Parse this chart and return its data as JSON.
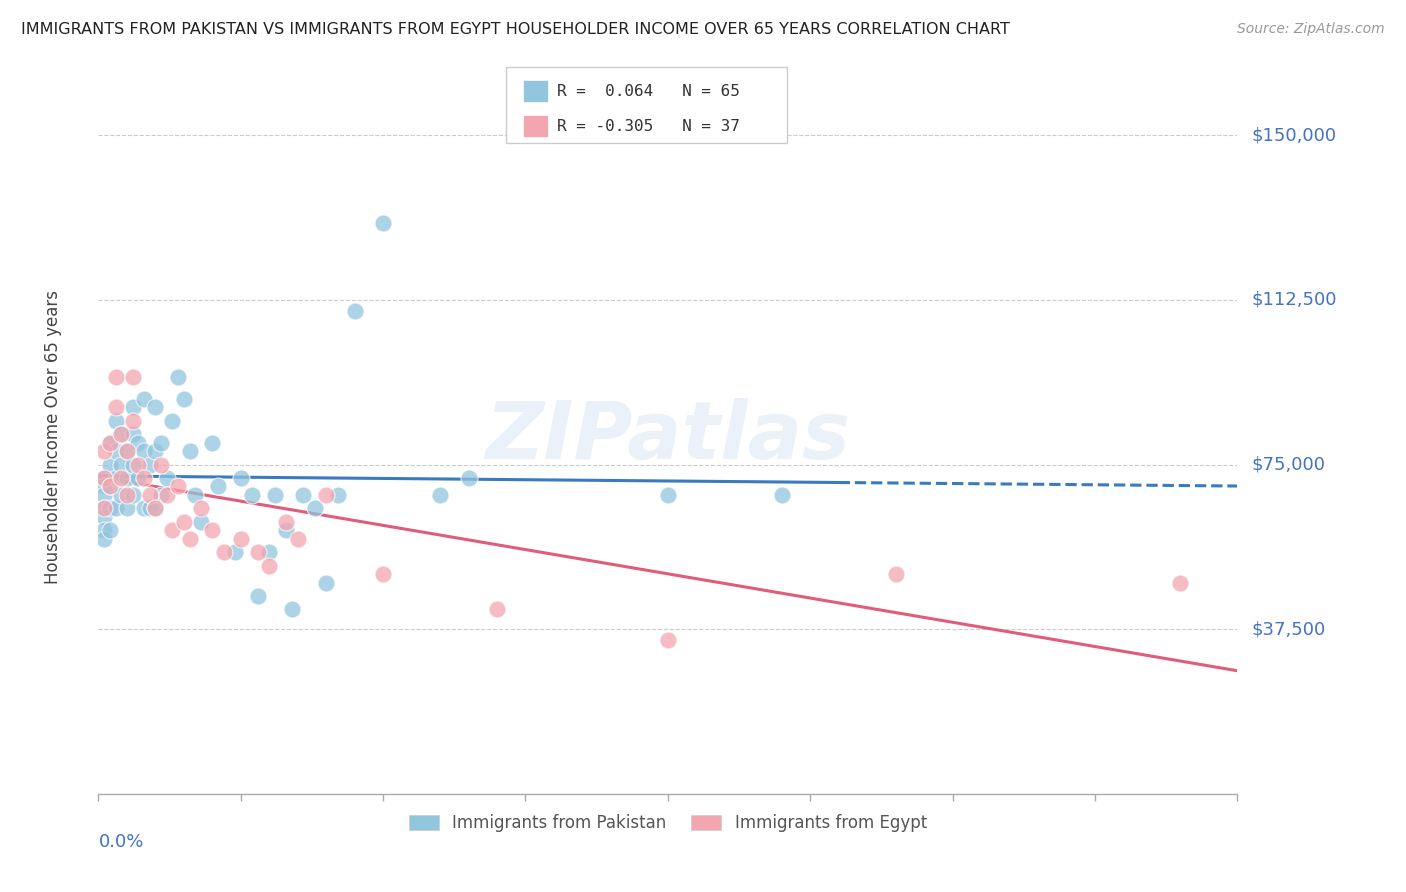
{
  "title": "IMMIGRANTS FROM PAKISTAN VS IMMIGRANTS FROM EGYPT HOUSEHOLDER INCOME OVER 65 YEARS CORRELATION CHART",
  "source": "Source: ZipAtlas.com",
  "ylabel": "Householder Income Over 65 years",
  "ytick_values": [
    37500,
    75000,
    112500,
    150000
  ],
  "ytick_labels": [
    "$37,500",
    "$75,000",
    "$112,500",
    "$150,000"
  ],
  "xlim": [
    0.0,
    0.2
  ],
  "ylim": [
    0,
    162500
  ],
  "pakistan_R": 0.064,
  "pakistan_N": 65,
  "egypt_R": -0.305,
  "egypt_N": 37,
  "pakistan_color": "#92c5de",
  "egypt_color": "#f4a6b0",
  "pakistan_line_color": "#3a7abf",
  "egypt_line_color": "#e05c7a",
  "watermark": "ZIPatlas",
  "background_color": "#ffffff",
  "grid_color": "#cccccc",
  "pakistan_x": [
    0.001,
    0.001,
    0.001,
    0.001,
    0.001,
    0.001,
    0.001,
    0.002,
    0.002,
    0.002,
    0.002,
    0.002,
    0.003,
    0.003,
    0.003,
    0.003,
    0.004,
    0.004,
    0.004,
    0.005,
    0.005,
    0.005,
    0.006,
    0.006,
    0.006,
    0.006,
    0.007,
    0.007,
    0.008,
    0.008,
    0.008,
    0.009,
    0.009,
    0.01,
    0.01,
    0.01,
    0.011,
    0.011,
    0.012,
    0.013,
    0.014,
    0.015,
    0.016,
    0.017,
    0.018,
    0.02,
    0.021,
    0.024,
    0.025,
    0.027,
    0.028,
    0.03,
    0.031,
    0.033,
    0.034,
    0.036,
    0.038,
    0.04,
    0.042,
    0.045,
    0.05,
    0.06,
    0.065,
    0.1,
    0.12
  ],
  "pakistan_y": [
    72000,
    70000,
    68000,
    65000,
    63000,
    60000,
    58000,
    80000,
    75000,
    70000,
    65000,
    60000,
    85000,
    78000,
    72000,
    65000,
    82000,
    75000,
    68000,
    78000,
    72000,
    65000,
    88000,
    82000,
    75000,
    68000,
    80000,
    72000,
    90000,
    78000,
    65000,
    75000,
    65000,
    88000,
    78000,
    65000,
    80000,
    68000,
    72000,
    85000,
    95000,
    90000,
    78000,
    68000,
    62000,
    80000,
    70000,
    55000,
    72000,
    68000,
    45000,
    55000,
    68000,
    60000,
    42000,
    68000,
    65000,
    48000,
    68000,
    110000,
    130000,
    68000,
    72000,
    68000,
    68000
  ],
  "egypt_x": [
    0.001,
    0.001,
    0.001,
    0.002,
    0.002,
    0.003,
    0.003,
    0.004,
    0.004,
    0.005,
    0.005,
    0.006,
    0.006,
    0.007,
    0.008,
    0.009,
    0.01,
    0.011,
    0.012,
    0.013,
    0.014,
    0.015,
    0.016,
    0.018,
    0.02,
    0.022,
    0.025,
    0.028,
    0.03,
    0.033,
    0.035,
    0.04,
    0.05,
    0.07,
    0.1,
    0.14,
    0.19
  ],
  "egypt_y": [
    78000,
    72000,
    65000,
    80000,
    70000,
    95000,
    88000,
    82000,
    72000,
    78000,
    68000,
    95000,
    85000,
    75000,
    72000,
    68000,
    65000,
    75000,
    68000,
    60000,
    70000,
    62000,
    58000,
    65000,
    60000,
    55000,
    58000,
    55000,
    52000,
    62000,
    58000,
    68000,
    50000,
    42000,
    35000,
    50000,
    48000
  ]
}
